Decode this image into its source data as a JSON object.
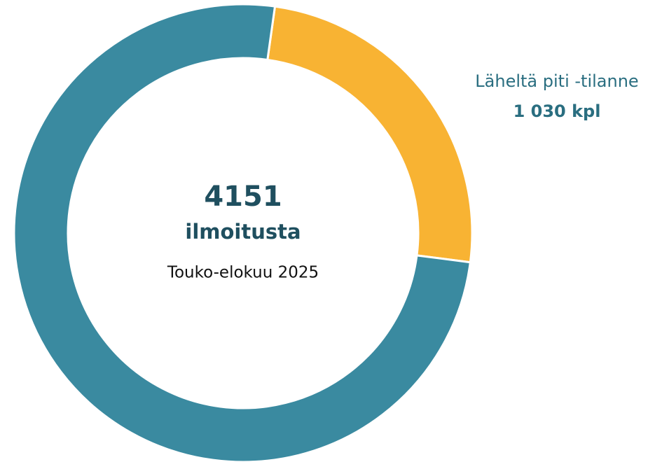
{
  "chart_data": {
    "type": "donut",
    "total": 4151,
    "center_label": "ilmoitusta",
    "subtitle": "Touko-elokuu 2025",
    "categories": [
      "Läheltä piti -tilanne",
      null
    ],
    "values": [
      1030,
      3121
    ],
    "value_labels": [
      "1 030 kpl",
      null
    ],
    "colors": [
      "#f8b333",
      "#3a8aa0"
    ]
  }
}
